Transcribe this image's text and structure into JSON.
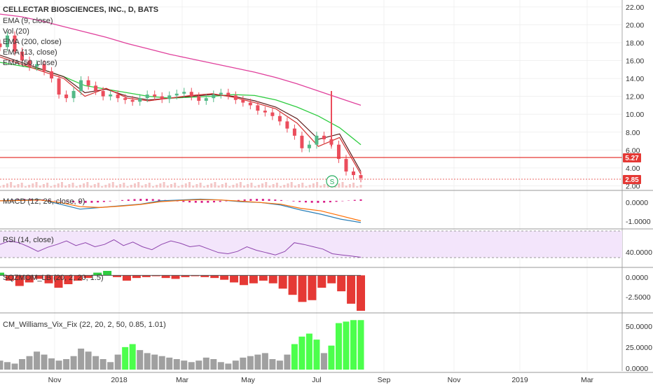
{
  "header": {
    "symbol_title": "CELLECTAR BIOSCIENCES, INC., D, BATS",
    "indicators": [
      "EMA (9, close)",
      "Vol (20)",
      "EMA (200, close)",
      "EMA (13, close)",
      "EMA (50, close)"
    ]
  },
  "colors": {
    "candle_up": "#53b987",
    "candle_down": "#eb4d5c",
    "ema9": "#d32f2f",
    "ema13": "#5b1a1a",
    "ema50": "#2ecc40",
    "ema200": "#e0409c",
    "macd": "#2a7fb8",
    "signal": "#ff6d00",
    "rsi": "#8e44ad",
    "rsi_band": "#f3e5fb",
    "price_line": "#e53935",
    "vix_normal": "#a0a0a0",
    "vix_high": "#4cff4c"
  },
  "x_axis": {
    "ticks": [
      "Nov",
      "2018",
      "Mar",
      "May",
      "Jul",
      "Sep",
      "Nov",
      "2019",
      "Mar"
    ]
  },
  "price_tags": {
    "level_line": "5.27",
    "last_price": "2.85"
  },
  "event_marker": "S",
  "panels": {
    "macd": {
      "label": "MACD (12, 26, close, 9)",
      "ticks": [
        "0.0000",
        "-1.0000"
      ]
    },
    "rsi": {
      "label": "RSI (14, close)",
      "ticks": [
        "40.0000"
      ]
    },
    "squeeze": {
      "label": "SQZMOM_LB (20, 2, 20, 1.5)",
      "ticks": [
        "0.0000",
        "-2.5000"
      ]
    },
    "vix": {
      "label": "CM_Williams_Vix_Fix (22, 20, 2, 50, 0.85, 1.01)",
      "ticks": [
        "50.0000",
        "25.0000",
        "0.0000"
      ]
    }
  },
  "chart_data": {
    "type": "candlestick",
    "title": "CELLECTAR BIOSCIENCES, INC., D, BATS",
    "price_axis": {
      "ticks": [
        22,
        20,
        18,
        16,
        14,
        12,
        10,
        8,
        6,
        4,
        2
      ],
      "ylim": [
        1.8,
        22.3
      ]
    },
    "series": [
      {
        "name": "EMA (200, close)",
        "values": [
          21.2,
          20.9,
          20.4,
          19.8,
          19.2,
          18.6,
          17.9,
          17.3,
          16.7,
          16.2,
          15.7,
          15.2,
          14.7,
          14.1,
          13.4,
          12.6,
          11.8,
          11.0
        ]
      },
      {
        "name": "EMA (50, close)",
        "values": [
          15.8,
          15.4,
          15.0,
          14.2,
          13.2,
          12.8,
          12.4,
          12.0,
          11.8,
          11.9,
          12.0,
          12.2,
          12.1,
          11.6,
          10.8,
          9.8,
          8.5,
          6.6
        ]
      },
      {
        "name": "EMA (13, close)",
        "values": [
          16.6,
          15.8,
          15.0,
          14.2,
          12.4,
          12.8,
          12.0,
          11.6,
          11.8,
          12.0,
          12.2,
          12.0,
          11.5,
          10.8,
          9.5,
          7.2,
          7.8,
          3.6
        ]
      },
      {
        "name": "EMA (9, close)",
        "values": [
          16.4,
          15.6,
          14.8,
          14.0,
          12.0,
          12.9,
          11.8,
          11.5,
          11.8,
          12.1,
          12.3,
          11.9,
          11.3,
          10.6,
          9.0,
          6.4,
          7.4,
          3.3
        ]
      }
    ],
    "closes": [
      17.5,
      18.8,
      17.0,
      16.0,
      15.3,
      15.6,
      14.8,
      14.0,
      12.2,
      11.8,
      12.6,
      13.8,
      13.2,
      12.6,
      12.0,
      12.2,
      11.8,
      11.6,
      11.4,
      11.8,
      12.2,
      12.0,
      11.7,
      12.1,
      12.3,
      12.5,
      12.0,
      11.5,
      11.8,
      12.2,
      12.4,
      12.1,
      11.6,
      11.3,
      11.0,
      10.4,
      10.2,
      9.8,
      9.2,
      8.4,
      7.6,
      6.2,
      6.6,
      7.6,
      7.2,
      6.6,
      5.0,
      3.6,
      3.2,
      2.85
    ],
    "horizontal_line": 5.27,
    "last_price": 2.85,
    "macd_ylim": [
      -1.6,
      0.5
    ],
    "macd": [
      0.0,
      0.05,
      0.08,
      -0.2,
      -0.5,
      -0.4,
      -0.3,
      -0.2,
      0.0,
      0.05,
      0.1,
      0.05,
      -0.05,
      -0.1,
      -0.25,
      -0.55,
      -0.8,
      -1.1,
      -1.3
    ],
    "signal": [
      0.0,
      0.02,
      0.05,
      -0.1,
      -0.35,
      -0.4,
      -0.32,
      -0.22,
      -0.05,
      0.02,
      0.07,
      0.05,
      -0.02,
      -0.1,
      -0.2,
      -0.45,
      -0.6,
      -0.9,
      -1.2
    ],
    "rsi_ylim": [
      15,
      75
    ],
    "rsi": [
      52,
      58,
      55,
      48,
      40,
      47,
      52,
      58,
      50,
      55,
      48,
      52,
      60,
      50,
      56,
      48,
      43,
      52,
      58,
      54,
      48,
      50,
      44,
      38,
      36,
      40,
      48,
      42,
      38,
      34,
      40,
      55,
      52,
      48,
      44,
      36,
      34,
      32,
      30
    ],
    "squeeze_ylim": [
      -4,
      0.5
    ],
    "squeeze": [
      0.3,
      -0.6,
      -1.2,
      -0.8,
      -0.4,
      -0.9,
      -1.4,
      -1.0,
      -0.6,
      -0.3,
      0.3,
      0.5,
      -0.2,
      -0.6,
      -0.3,
      -0.2,
      -0.1,
      -0.3,
      -0.4,
      -0.2,
      -0.1,
      -0.2,
      -0.3,
      -0.5,
      -0.8,
      -1.1,
      -0.9,
      -0.6,
      -0.9,
      -1.5,
      -2.2,
      -3.0,
      -2.8,
      -1.4,
      -0.9,
      -1.8,
      -3.2,
      -4.0
    ],
    "vix_ylim": [
      0,
      70
    ],
    "vix": [
      12,
      10,
      8,
      14,
      18,
      24,
      20,
      15,
      12,
      14,
      18,
      28,
      24,
      18,
      14,
      10,
      20,
      30,
      34,
      26,
      22,
      20,
      18,
      16,
      14,
      12,
      10,
      12,
      16,
      14,
      10,
      8,
      12,
      16,
      18,
      20,
      22,
      14,
      12,
      20,
      34,
      44,
      48,
      40,
      22,
      32,
      62,
      64,
      66,
      66
    ]
  }
}
